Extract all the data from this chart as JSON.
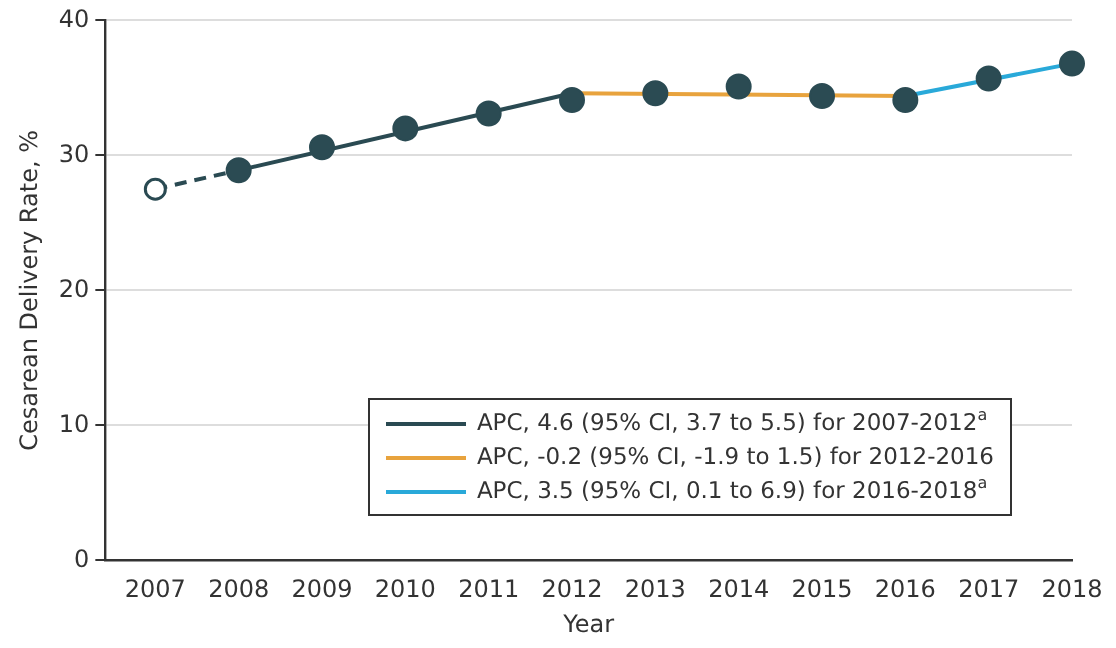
{
  "chart_data": {
    "type": "line",
    "xlabel": "Year",
    "ylabel": "Cesarean Delivery Rate, %",
    "xlim": [
      2006.4,
      2018
    ],
    "xticks": [
      2007,
      2008,
      2009,
      2010,
      2011,
      2012,
      2013,
      2014,
      2015,
      2016,
      2017,
      2018
    ],
    "ylim": [
      0,
      40
    ],
    "yticks": [
      0,
      10,
      20,
      30,
      40
    ],
    "grid": "y",
    "legend": "bottom right",
    "series": [
      {
        "color": "#2a4a52",
        "x": [
          2007,
          2008
        ],
        "values": [
          27.5,
          28.9
        ],
        "line_style": "dashed",
        "marker": "circle"
      },
      {
        "name": "APC, 4.6 (95% CI, 3.7 to 5.5) for 2007-2012$^{a}$",
        "color": "#2a4a52",
        "x": [
          2008,
          2012
        ],
        "values": [
          28.9,
          34.6
        ]
      },
      {
        "name": "APC, -0.2 (95% CI, -1.9 to 1.5) for 2012-2016",
        "color": "#e8a33d",
        "x": [
          2012,
          2016
        ],
        "values": [
          34.6,
          34.4
        ]
      },
      {
        "name": "APC, 3.5 (95% CI, 0.1 to 6.9) for 2016-2018$^{a}$",
        "color": "#29a9d9",
        "x": [
          2016,
          2018
        ],
        "values": [
          34.4,
          36.8
        ]
      },
      {
        "type": "scatter",
        "color": "#2b4b53",
        "x": [
          2008,
          2009,
          2010,
          2011,
          2012,
          2013,
          2014,
          2015,
          2016,
          2017,
          2018
        ],
        "values": [
          28.9,
          30.6,
          32.0,
          33.1,
          34.1,
          34.6,
          35.1,
          34.4,
          34.1,
          35.7,
          36.8
        ],
        "marker": "circle"
      }
    ]
  }
}
